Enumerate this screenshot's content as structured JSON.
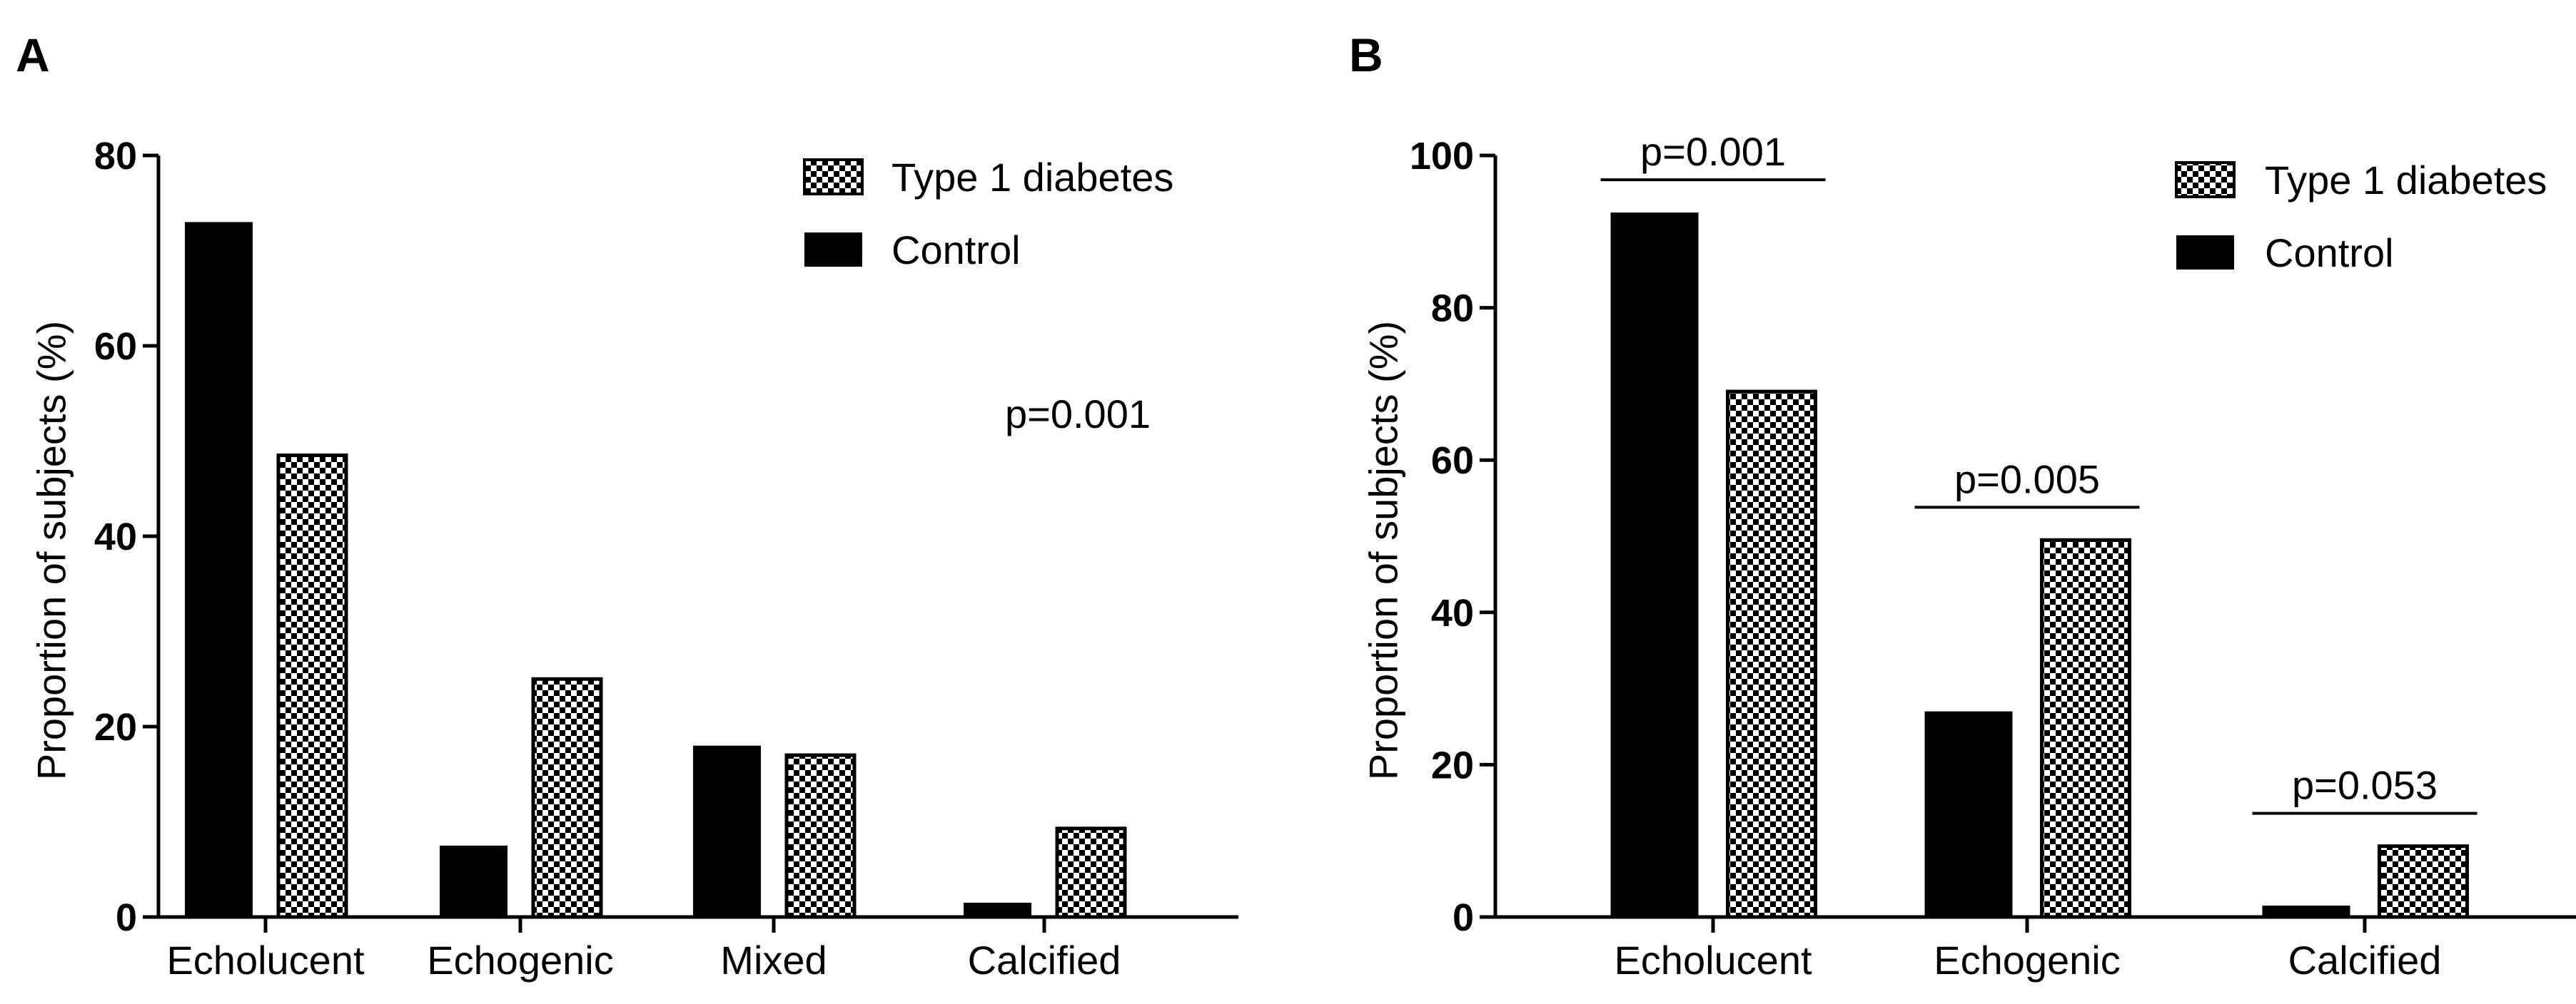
{
  "chart_data": [
    {
      "panel": "A",
      "type": "bar",
      "categories": [
        "Echolucent",
        "Echogenic",
        "Mixed",
        "Calcified"
      ],
      "series": [
        {
          "name": "Control",
          "pattern": "solid",
          "values": [
            73,
            7.5,
            18,
            1.5
          ]
        },
        {
          "name": "Type 1 diabetes",
          "pattern": "checker",
          "values": [
            48.5,
            25,
            17,
            9.3
          ]
        }
      ],
      "ylabel": "Proportion of subjects (%)",
      "ylim": [
        0,
        80
      ],
      "yticks": [
        0,
        20,
        40,
        60,
        80
      ],
      "legend": {
        "position": "top-right",
        "entries": [
          "Type 1 diabetes",
          "Control"
        ]
      },
      "annotations": [
        {
          "text": "p=0.001",
          "placement": "right-middle"
        }
      ]
    },
    {
      "panel": "B",
      "type": "bar",
      "categories": [
        "Echolucent",
        "Echogenic",
        "Calcified"
      ],
      "series": [
        {
          "name": "Control",
          "pattern": "solid",
          "values": [
            92.5,
            27,
            1.5
          ]
        },
        {
          "name": "Type 1 diabetes",
          "pattern": "checker",
          "values": [
            69,
            49.5,
            9.3
          ]
        }
      ],
      "ylabel": "Proportion of subjects (%)",
      "ylim": [
        0,
        100
      ],
      "yticks": [
        0,
        20,
        40,
        60,
        80,
        100
      ],
      "legend": {
        "position": "top-right",
        "entries": [
          "Type 1 diabetes",
          "Control"
        ]
      },
      "annotations": [
        {
          "text": "p=0.001",
          "category": "Echolucent"
        },
        {
          "text": "p=0.005",
          "category": "Echogenic"
        },
        {
          "text": "p=0.053",
          "category": "Calcified"
        }
      ]
    }
  ],
  "colors": {
    "ink": "#000000",
    "paper": "#ffffff"
  }
}
